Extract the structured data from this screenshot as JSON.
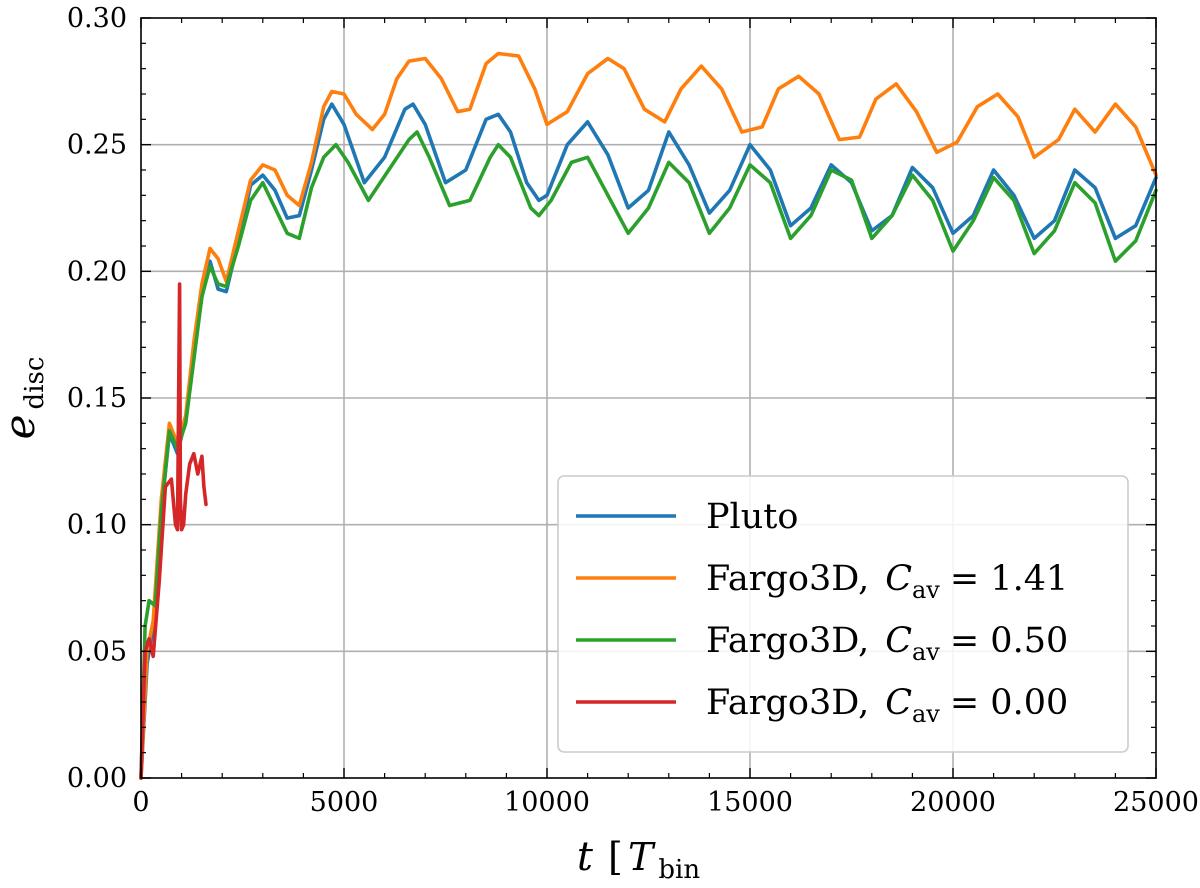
{
  "chart_data": {
    "type": "line",
    "title": "",
    "xlabel": {
      "main": "t",
      "bracket_open": "[",
      "symbol": "T",
      "subscript": "bin",
      "bracket_close": "]"
    },
    "ylabel": {
      "main": "e",
      "subscript": "disc"
    },
    "xlim": [
      0,
      25000
    ],
    "ylim": [
      0.0,
      0.3
    ],
    "xticks": [
      0,
      5000,
      10000,
      15000,
      20000,
      25000
    ],
    "xtick_labels": [
      "0",
      "5000",
      "10000",
      "15000",
      "20000",
      "25000"
    ],
    "yticks": [
      0.0,
      0.05,
      0.1,
      0.15,
      0.2,
      0.25,
      0.3
    ],
    "ytick_labels": [
      "0.00",
      "0.05",
      "0.10",
      "0.15",
      "0.20",
      "0.25",
      "0.30"
    ],
    "grid": true,
    "legend_position": "lower-right",
    "series": [
      {
        "name": "Pluto",
        "name_parts": {
          "code": "Pluto",
          "sep": "",
          "symbol": "",
          "sub": "",
          "value": ""
        },
        "color": "#1f77b4",
        "x": [
          0,
          150,
          300,
          500,
          700,
          900,
          1100,
          1300,
          1500,
          1700,
          1900,
          2100,
          2400,
          2700,
          3000,
          3300,
          3600,
          3900,
          4200,
          4500,
          4700,
          5000,
          5500,
          6000,
          6500,
          6700,
          7000,
          7500,
          8000,
          8500,
          8800,
          9100,
          9500,
          9800,
          10000,
          10500,
          11000,
          11500,
          12000,
          12500,
          13000,
          13500,
          14000,
          14500,
          15000,
          15500,
          16000,
          16500,
          17000,
          17500,
          18000,
          18500,
          19000,
          19500,
          20000,
          20500,
          21000,
          21500,
          22000,
          22500,
          23000,
          23500,
          24000,
          24500,
          25000
        ],
        "values": [
          0.0,
          0.045,
          0.06,
          0.105,
          0.136,
          0.128,
          0.142,
          0.168,
          0.19,
          0.204,
          0.193,
          0.192,
          0.212,
          0.234,
          0.238,
          0.232,
          0.221,
          0.222,
          0.24,
          0.26,
          0.266,
          0.258,
          0.235,
          0.245,
          0.264,
          0.266,
          0.258,
          0.235,
          0.24,
          0.26,
          0.262,
          0.255,
          0.235,
          0.228,
          0.23,
          0.25,
          0.259,
          0.246,
          0.225,
          0.232,
          0.255,
          0.242,
          0.223,
          0.232,
          0.25,
          0.24,
          0.218,
          0.225,
          0.242,
          0.235,
          0.216,
          0.222,
          0.241,
          0.233,
          0.215,
          0.222,
          0.24,
          0.23,
          0.213,
          0.22,
          0.24,
          0.233,
          0.213,
          0.218,
          0.237
        ]
      },
      {
        "name": "Fargo3D, C_av = 1.41",
        "name_parts": {
          "code": "Fargo3D",
          "sep": ",",
          "symbol": "C",
          "sub": "av",
          "value": "= 1.41"
        },
        "color": "#ff7f0e",
        "x": [
          0,
          150,
          300,
          500,
          700,
          900,
          1100,
          1300,
          1500,
          1700,
          1900,
          2100,
          2400,
          2700,
          3000,
          3300,
          3600,
          3900,
          4200,
          4500,
          4700,
          5000,
          5300,
          5700,
          6000,
          6300,
          6600,
          7000,
          7400,
          7800,
          8100,
          8500,
          8800,
          9300,
          9700,
          10000,
          10500,
          11000,
          11500,
          11900,
          12400,
          12900,
          13300,
          13800,
          14300,
          14800,
          15300,
          15700,
          16200,
          16700,
          17200,
          17700,
          18100,
          18600,
          19100,
          19600,
          20100,
          20600,
          21100,
          21600,
          22000,
          22600,
          23000,
          23500,
          24000,
          24500,
          25000
        ],
        "values": [
          0.0,
          0.05,
          0.062,
          0.11,
          0.14,
          0.132,
          0.143,
          0.172,
          0.195,
          0.209,
          0.205,
          0.196,
          0.216,
          0.236,
          0.242,
          0.24,
          0.23,
          0.226,
          0.243,
          0.265,
          0.271,
          0.27,
          0.262,
          0.256,
          0.262,
          0.276,
          0.283,
          0.284,
          0.276,
          0.263,
          0.264,
          0.282,
          0.286,
          0.285,
          0.272,
          0.258,
          0.263,
          0.278,
          0.284,
          0.28,
          0.264,
          0.259,
          0.272,
          0.281,
          0.272,
          0.255,
          0.257,
          0.272,
          0.277,
          0.27,
          0.252,
          0.253,
          0.268,
          0.274,
          0.263,
          0.247,
          0.251,
          0.265,
          0.27,
          0.261,
          0.245,
          0.252,
          0.264,
          0.255,
          0.266,
          0.257,
          0.238
        ]
      },
      {
        "name": "Fargo3D, C_av = 0.50",
        "name_parts": {
          "code": "Fargo3D",
          "sep": ",",
          "symbol": "C",
          "sub": "av",
          "value": "= 0.50"
        },
        "color": "#2ca02c",
        "x": [
          0,
          100,
          200,
          350,
          500,
          700,
          900,
          1100,
          1300,
          1500,
          1700,
          1900,
          2100,
          2400,
          2700,
          3000,
          3300,
          3600,
          3900,
          4200,
          4500,
          4800,
          5100,
          5600,
          6100,
          6600,
          6800,
          7100,
          7600,
          8100,
          8600,
          8800,
          9100,
          9600,
          9800,
          10100,
          10600,
          11000,
          11500,
          12000,
          12500,
          13000,
          13500,
          14000,
          14500,
          15000,
          15500,
          16000,
          16500,
          17000,
          17500,
          18000,
          18500,
          19000,
          19500,
          20000,
          20500,
          21000,
          21500,
          22000,
          22500,
          23000,
          23500,
          24000,
          24500,
          25000
        ],
        "values": [
          0.0,
          0.06,
          0.07,
          0.068,
          0.105,
          0.137,
          0.13,
          0.14,
          0.165,
          0.19,
          0.202,
          0.195,
          0.194,
          0.21,
          0.228,
          0.235,
          0.225,
          0.215,
          0.213,
          0.233,
          0.245,
          0.25,
          0.243,
          0.228,
          0.24,
          0.252,
          0.255,
          0.245,
          0.226,
          0.228,
          0.245,
          0.25,
          0.245,
          0.225,
          0.222,
          0.228,
          0.243,
          0.245,
          0.23,
          0.215,
          0.225,
          0.243,
          0.235,
          0.215,
          0.225,
          0.242,
          0.235,
          0.213,
          0.222,
          0.24,
          0.236,
          0.213,
          0.222,
          0.238,
          0.228,
          0.208,
          0.22,
          0.237,
          0.228,
          0.207,
          0.216,
          0.235,
          0.227,
          0.204,
          0.212,
          0.232
        ]
      },
      {
        "name": "Fargo3D, C_av = 0.00",
        "name_parts": {
          "code": "Fargo3D",
          "sep": ",",
          "symbol": "C",
          "sub": "av",
          "value": "= 0.00"
        },
        "color": "#d62728",
        "x": [
          0,
          100,
          200,
          300,
          450,
          600,
          750,
          850,
          900,
          950,
          970,
          1000,
          1050,
          1100,
          1200,
          1300,
          1400,
          1500,
          1550,
          1600
        ],
        "values": [
          0.0,
          0.05,
          0.055,
          0.048,
          0.078,
          0.115,
          0.118,
          0.1,
          0.098,
          0.195,
          0.11,
          0.098,
          0.1,
          0.112,
          0.124,
          0.128,
          0.12,
          0.127,
          0.115,
          0.108
        ]
      }
    ]
  }
}
